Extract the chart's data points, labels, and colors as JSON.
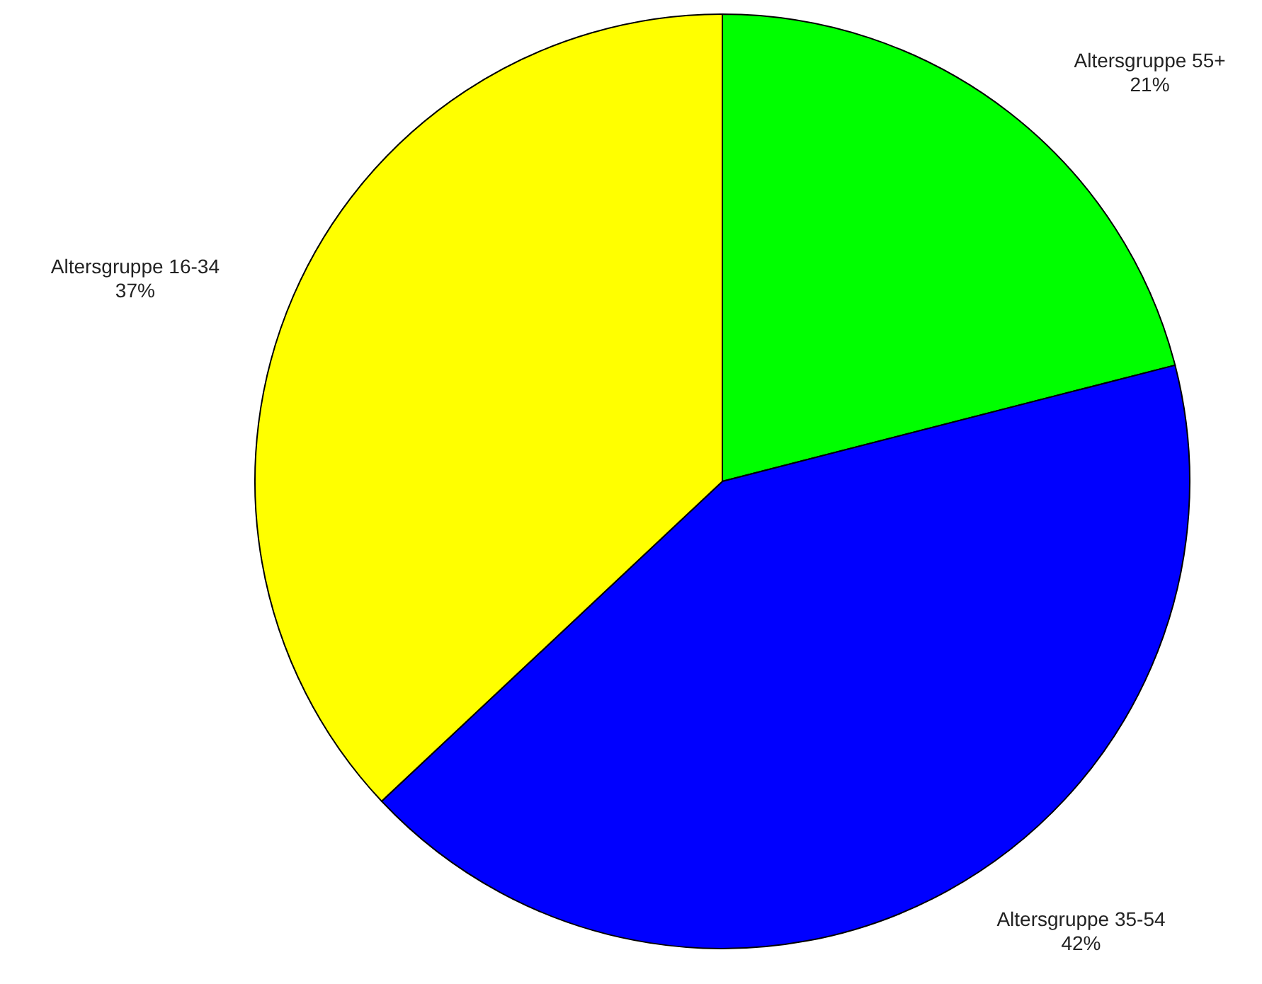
{
  "chart_data": {
    "type": "pie",
    "categories": [
      "Altersgruppe 55+",
      "Altersgruppe 35-54",
      "Altersgruppe 16-34"
    ],
    "values": [
      21,
      42,
      37
    ],
    "colors": [
      "#00ff00",
      "#0000ff",
      "#ffff00"
    ],
    "value_labels": [
      "21%",
      "42%",
      "37%"
    ]
  }
}
